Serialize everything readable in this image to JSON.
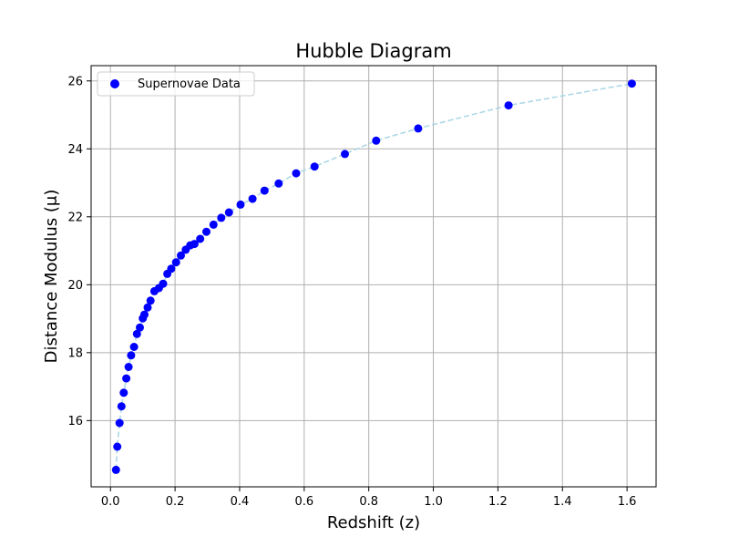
{
  "chart_data": {
    "type": "scatter",
    "title": "Hubble Diagram",
    "xlabel": "Redshift (z)",
    "ylabel": "Distance Modulus (μ)",
    "xlim": [
      -0.06,
      1.69
    ],
    "ylim": [
      14.05,
      26.45
    ],
    "xticks": [
      0.0,
      0.2,
      0.4,
      0.6,
      0.8,
      1.0,
      1.2,
      1.4,
      1.6
    ],
    "xtick_labels": [
      "0.0",
      "0.2",
      "0.4",
      "0.6",
      "0.8",
      "1.0",
      "1.2",
      "1.4",
      "1.6"
    ],
    "yticks": [
      16,
      18,
      20,
      22,
      24,
      26
    ],
    "ytick_labels": [
      "16",
      "18",
      "20",
      "22",
      "24",
      "26"
    ],
    "grid": true,
    "legend": {
      "position": "top-left",
      "entries": [
        "Supernovae Data"
      ]
    },
    "series": [
      {
        "name": "Supernovae Data",
        "color": "#0000ff",
        "line_color": "#add8e6",
        "x": [
          0.017,
          0.021,
          0.028,
          0.034,
          0.041,
          0.049,
          0.056,
          0.064,
          0.073,
          0.082,
          0.091,
          0.1,
          0.105,
          0.115,
          0.124,
          0.136,
          0.15,
          0.163,
          0.176,
          0.188,
          0.203,
          0.218,
          0.233,
          0.247,
          0.26,
          0.278,
          0.297,
          0.319,
          0.343,
          0.367,
          0.403,
          0.44,
          0.477,
          0.521,
          0.575,
          0.632,
          0.726,
          0.823,
          0.953,
          1.233,
          1.615
        ],
        "y": [
          14.55,
          15.23,
          15.93,
          16.42,
          16.82,
          17.24,
          17.58,
          17.92,
          18.17,
          18.55,
          18.74,
          19.01,
          19.12,
          19.33,
          19.53,
          19.81,
          19.9,
          20.03,
          20.32,
          20.47,
          20.66,
          20.86,
          21.03,
          21.16,
          21.2,
          21.35,
          21.56,
          21.77,
          21.97,
          22.13,
          22.36,
          22.53,
          22.77,
          22.98,
          23.28,
          23.48,
          23.85,
          24.24,
          24.6,
          25.28,
          25.92
        ]
      }
    ]
  }
}
